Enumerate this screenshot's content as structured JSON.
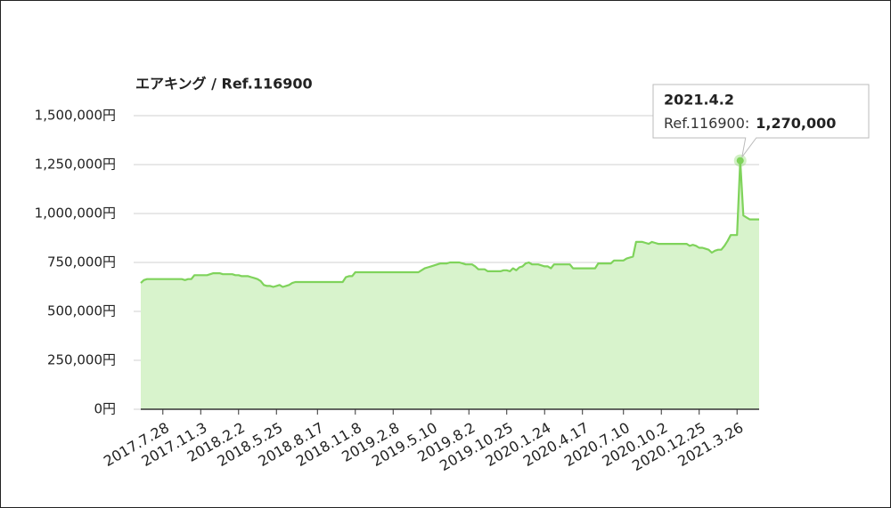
{
  "chart_data": {
    "type": "area",
    "title": "エアキング / Ref.116900",
    "categories": [
      null,
      null,
      null,
      null,
      null,
      null,
      null,
      "2017.7.28",
      null,
      null,
      null,
      null,
      null,
      null,
      null,
      null,
      null,
      null,
      null,
      "2017.11.3",
      null,
      null,
      null,
      null,
      null,
      null,
      null,
      null,
      null,
      null,
      null,
      "2018.2.2",
      null,
      null,
      null,
      null,
      null,
      null,
      null,
      null,
      null,
      null,
      null,
      "2018.5.25",
      null,
      null,
      null,
      null,
      null,
      null,
      null,
      null,
      null,
      null,
      null,
      null,
      "2018.8.17",
      null,
      null,
      null,
      null,
      null,
      null,
      null,
      null,
      null,
      null,
      null,
      "2018.11.8",
      null,
      null,
      null,
      null,
      null,
      null,
      null,
      null,
      null,
      null,
      null,
      "2019.2.8",
      null,
      null,
      null,
      null,
      null,
      null,
      null,
      null,
      null,
      null,
      null,
      "2019.5.10",
      null,
      null,
      null,
      null,
      null,
      null,
      null,
      null,
      null,
      null,
      null,
      "2019.8.2",
      null,
      null,
      null,
      null,
      null,
      null,
      null,
      null,
      null,
      null,
      null,
      "2019.10.25",
      null,
      null,
      null,
      null,
      null,
      null,
      null,
      null,
      null,
      null,
      null,
      "2020.1.24",
      null,
      null,
      null,
      null,
      null,
      null,
      null,
      null,
      null,
      null,
      null,
      "2020.4.17",
      null,
      null,
      null,
      null,
      null,
      null,
      null,
      null,
      null,
      null,
      null,
      null,
      "2020.7.10",
      null,
      null,
      null,
      null,
      null,
      null,
      null,
      null,
      null,
      null,
      null,
      "2020.10.2",
      null,
      null,
      null,
      null,
      null,
      null,
      null,
      null,
      null,
      null,
      null,
      "2020.12.25",
      null,
      null,
      null,
      null,
      null,
      null,
      null,
      null,
      null,
      null,
      null,
      "2021.3.26",
      null,
      null,
      null,
      null,
      null,
      null,
      null
    ],
    "values": [
      645000,
      660000,
      665000,
      665000,
      665000,
      665000,
      665000,
      665000,
      665000,
      665000,
      665000,
      665000,
      665000,
      665000,
      660000,
      665000,
      665000,
      685000,
      685000,
      685000,
      685000,
      685000,
      690000,
      695000,
      695000,
      695000,
      690000,
      690000,
      690000,
      690000,
      685000,
      685000,
      680000,
      680000,
      680000,
      675000,
      670000,
      665000,
      655000,
      635000,
      630000,
      630000,
      625000,
      630000,
      635000,
      625000,
      630000,
      635000,
      645000,
      650000,
      650000,
      650000,
      650000,
      650000,
      650000,
      650000,
      650000,
      650000,
      650000,
      650000,
      650000,
      650000,
      650000,
      650000,
      650000,
      675000,
      680000,
      680000,
      700000,
      700000,
      700000,
      700000,
      700000,
      700000,
      700000,
      700000,
      700000,
      700000,
      700000,
      700000,
      700000,
      700000,
      700000,
      700000,
      700000,
      700000,
      700000,
      700000,
      700000,
      710000,
      720000,
      725000,
      730000,
      735000,
      740000,
      745000,
      745000,
      745000,
      750000,
      750000,
      750000,
      750000,
      745000,
      740000,
      740000,
      740000,
      730000,
      715000,
      715000,
      715000,
      705000,
      705000,
      705000,
      705000,
      705000,
      710000,
      710000,
      705000,
      720000,
      710000,
      725000,
      730000,
      745000,
      750000,
      740000,
      740000,
      740000,
      735000,
      730000,
      730000,
      720000,
      740000,
      740000,
      740000,
      740000,
      740000,
      740000,
      720000,
      720000,
      720000,
      720000,
      720000,
      720000,
      720000,
      720000,
      745000,
      745000,
      745000,
      745000,
      745000,
      760000,
      760000,
      760000,
      760000,
      770000,
      775000,
      780000,
      855000,
      855000,
      855000,
      850000,
      845000,
      855000,
      850000,
      845000,
      845000,
      845000,
      845000,
      845000,
      845000,
      845000,
      845000,
      845000,
      845000,
      835000,
      840000,
      835000,
      825000,
      825000,
      820000,
      815000,
      800000,
      810000,
      815000,
      815000,
      835000,
      860000,
      890000,
      890000,
      890000,
      1270000,
      990000,
      980000,
      970000,
      970000,
      970000,
      970000
    ],
    "color": "#7fd35b",
    "fill": "#d8f3cc",
    "ylim": [
      0,
      1500000
    ],
    "yticks": [
      {
        "value": 0,
        "label": "0円"
      },
      {
        "value": 250000,
        "label": "250,000円"
      },
      {
        "value": 500000,
        "label": "500,000円"
      },
      {
        "value": 750000,
        "label": "750,000円"
      },
      {
        "value": 1000000,
        "label": "1,000,000円"
      },
      {
        "value": 1250000,
        "label": "1,250,000円"
      },
      {
        "value": 1500000,
        "label": "1,500,000円"
      }
    ],
    "grid": true,
    "tooltip": {
      "title": "2021.4.2",
      "label": "Ref.116900:",
      "value": 1270000,
      "value_label": "1,270,000"
    }
  }
}
